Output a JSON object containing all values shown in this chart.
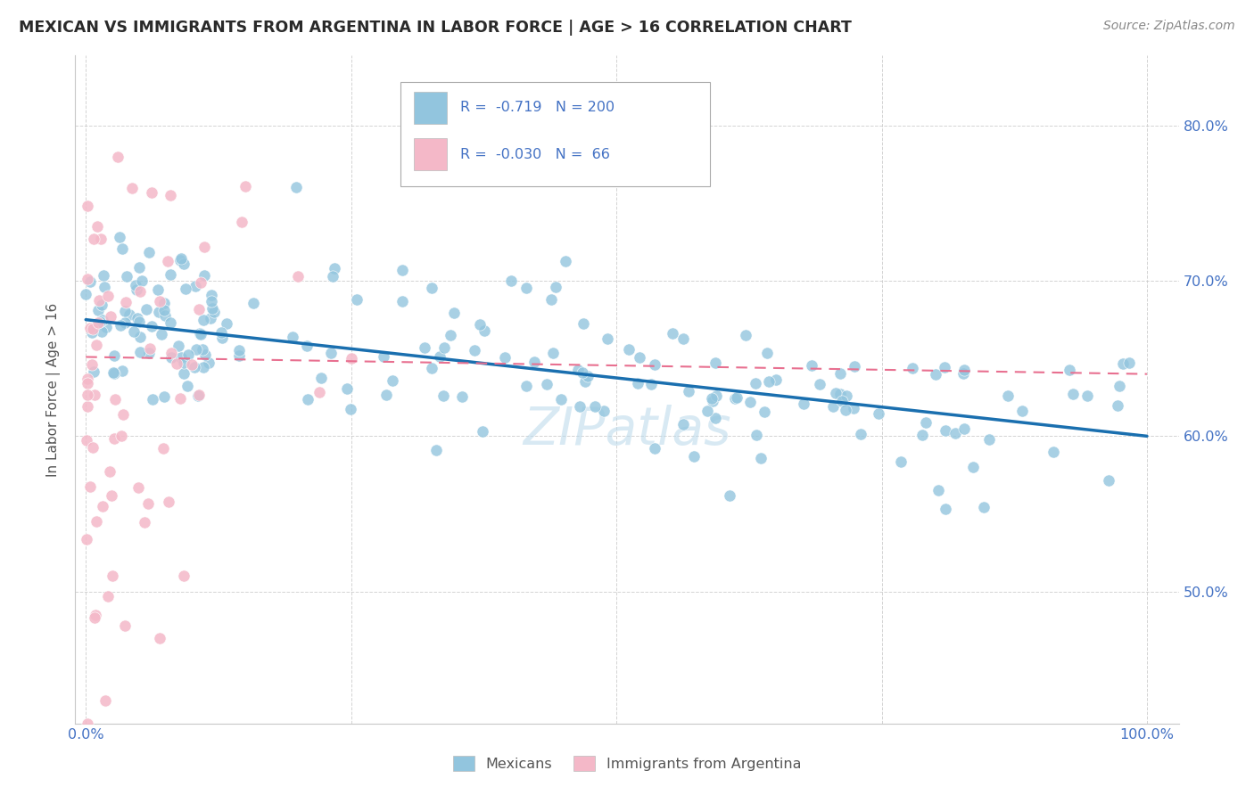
{
  "title": "MEXICAN VS IMMIGRANTS FROM ARGENTINA IN LABOR FORCE | AGE > 16 CORRELATION CHART",
  "source": "Source: ZipAtlas.com",
  "ylabel": "In Labor Force | Age > 16",
  "ytick_labels": [
    "50.0%",
    "60.0%",
    "70.0%",
    "80.0%"
  ],
  "ytick_values": [
    0.5,
    0.6,
    0.7,
    0.8
  ],
  "xtick_labels": [
    "0.0%",
    "100.0%"
  ],
  "xtick_positions": [
    0.0,
    1.0
  ],
  "xlim": [
    -0.01,
    1.03
  ],
  "ylim": [
    0.415,
    0.845
  ],
  "blue_scatter_color": "#92c5de",
  "pink_scatter_color": "#f4b8c8",
  "blue_line_color": "#1a6faf",
  "pink_line_color": "#e87090",
  "grid_color": "#c8c8c8",
  "tick_color": "#4472c4",
  "watermark_color": "#b8d8ea",
  "watermark_alpha": 0.55,
  "mexicans_label": "Mexicans",
  "argentina_label": "Immigrants from Argentina",
  "legend_blue_r": "R =  -0.719",
  "legend_blue_n": "N = 200",
  "legend_pink_r": "R =  -0.030",
  "legend_pink_n": "N =  66",
  "mex_line_x0": 0.0,
  "mex_line_y0": 0.675,
  "mex_line_x1": 1.0,
  "mex_line_y1": 0.6,
  "arg_line_x0": 0.0,
  "arg_line_y0": 0.651,
  "arg_line_x1": 1.0,
  "arg_line_y1": 0.64
}
